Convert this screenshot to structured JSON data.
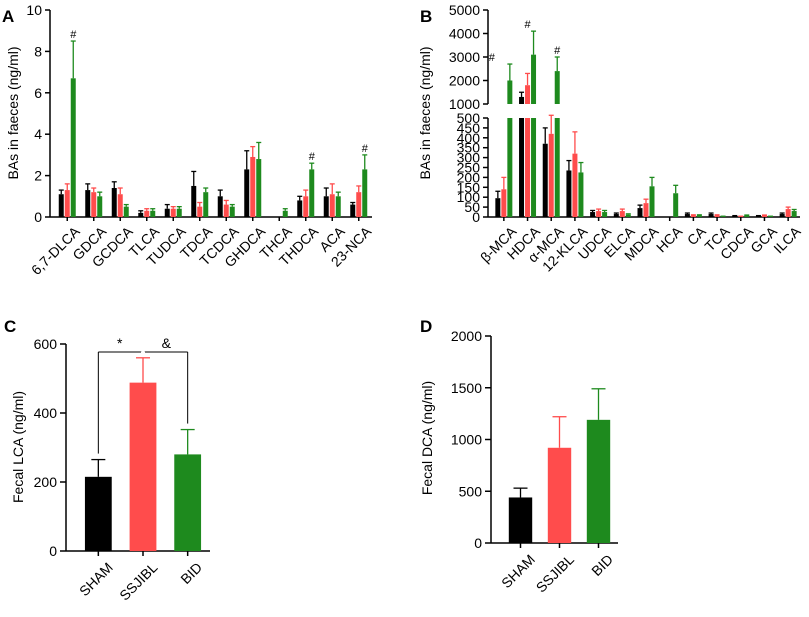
{
  "colors": {
    "sham": "#000000",
    "ssjibl": "#ff4c4c",
    "bid": "#1e8a1e",
    "axis": "#000000"
  },
  "chart_data": [
    {
      "panel": "A",
      "type": "bar",
      "ylabel": "BAs in faeces (ng/ml)",
      "ylim": [
        0,
        10
      ],
      "yticks": [
        "0",
        "2",
        "4",
        "6",
        "8",
        "10"
      ],
      "categories": [
        "6,7-DLCA",
        "GDCA",
        "GCDCA",
        "TLCA",
        "TUDCA",
        "TDCA",
        "TCDCA",
        "GHDCA",
        "THCA",
        "THDCA",
        "ACA",
        "23-NCA"
      ],
      "marks": [
        "#",
        "",
        "",
        "",
        "",
        "",
        "",
        "",
        "",
        "#",
        "",
        "#"
      ],
      "series": [
        {
          "name": "SHAM",
          "values": [
            1.1,
            1.3,
            1.4,
            0.2,
            0.4,
            1.5,
            1.0,
            2.3,
            0.0,
            0.8,
            1.0,
            0.6
          ],
          "errors": [
            0.2,
            0.3,
            0.3,
            0.1,
            0.2,
            0.7,
            0.3,
            0.9,
            0.0,
            0.2,
            0.4,
            0.1
          ]
        },
        {
          "name": "SSJIBL",
          "values": [
            1.3,
            1.2,
            1.1,
            0.3,
            0.4,
            0.5,
            0.6,
            2.9,
            0.0,
            1.0,
            1.1,
            1.2
          ],
          "errors": [
            0.3,
            0.2,
            0.3,
            0.1,
            0.1,
            0.2,
            0.2,
            0.5,
            0.0,
            0.3,
            0.5,
            0.3
          ]
        },
        {
          "name": "BID",
          "values": [
            6.7,
            1.0,
            0.5,
            0.3,
            0.4,
            1.2,
            0.5,
            2.8,
            0.3,
            2.3,
            1.0,
            2.3
          ],
          "errors": [
            1.8,
            0.2,
            0.1,
            0.1,
            0.1,
            0.2,
            0.1,
            0.8,
            0.1,
            0.3,
            0.2,
            0.7
          ]
        }
      ]
    },
    {
      "panel": "B",
      "type": "bar",
      "ylabel": "BAs in faeces (ng/ml)",
      "broken_axis": {
        "lower": [
          0,
          500
        ],
        "upper": [
          1000,
          5000
        ]
      },
      "yticks": [
        "0",
        "50",
        "100",
        "150",
        "200",
        "250",
        "300",
        "350",
        "400",
        "450",
        "500",
        "1000",
        "2000",
        "3000",
        "4000",
        "5000"
      ],
      "categories": [
        "β-MCA",
        "HDCA",
        "α-MCA",
        "12-KLCA",
        "UDCA",
        "ELCA",
        "MDCA",
        "HCA",
        "CA",
        "TCA",
        "CDCA",
        "GCA",
        "ILCA"
      ],
      "marks": [
        "#",
        "#",
        "#",
        "",
        "",
        "",
        "",
        "",
        "",
        "",
        "",
        "",
        ""
      ],
      "series": [
        {
          "name": "SHAM",
          "values": [
            95,
            1300,
            370,
            235,
            25,
            15,
            45,
            0,
            15,
            15,
            5,
            5,
            15
          ],
          "errors": [
            35,
            200,
            80,
            50,
            8,
            5,
            15,
            0,
            5,
            5,
            2,
            2,
            5
          ]
        },
        {
          "name": "SSJIBL",
          "values": [
            140,
            1800,
            420,
            320,
            30,
            30,
            70,
            0,
            8,
            8,
            3,
            8,
            40
          ],
          "errors": [
            60,
            500,
            100,
            110,
            10,
            10,
            20,
            0,
            3,
            3,
            1,
            2,
            10
          ]
        },
        {
          "name": "BID",
          "values": [
            2000,
            3100,
            2400,
            225,
            25,
            12,
            155,
            120,
            8,
            3,
            8,
            3,
            30
          ],
          "errors": [
            700,
            1000,
            600,
            50,
            8,
            4,
            45,
            40,
            3,
            1,
            2,
            1,
            8
          ]
        }
      ]
    },
    {
      "panel": "C",
      "type": "bar",
      "ylabel": "Fecal LCA (ng/ml)",
      "ylim": [
        0,
        600
      ],
      "yticks": [
        "0",
        "200",
        "400",
        "600"
      ],
      "categories": [
        "SHAM",
        "SSJIBL",
        "BID"
      ],
      "values": [
        215,
        488,
        280
      ],
      "errors": [
        50,
        72,
        72
      ],
      "significance": [
        {
          "between": [
            "SHAM",
            "SSJIBL"
          ],
          "symbol": "*"
        },
        {
          "between": [
            "SSJIBL",
            "BID"
          ],
          "symbol": "&"
        }
      ]
    },
    {
      "panel": "D",
      "type": "bar",
      "ylabel": "Fecal DCA (ng/ml)",
      "ylim": [
        0,
        2000
      ],
      "yticks": [
        "0",
        "500",
        "1000",
        "1500",
        "2000"
      ],
      "categories": [
        "SHAM",
        "SSJIBL",
        "BID"
      ],
      "values": [
        440,
        920,
        1190
      ],
      "errors": [
        90,
        300,
        300
      ]
    }
  ]
}
